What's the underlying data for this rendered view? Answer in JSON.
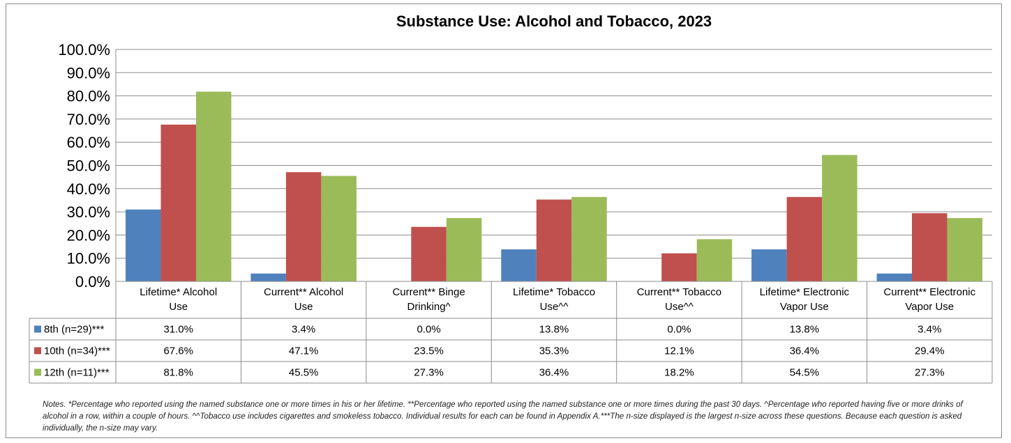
{
  "chart_data": {
    "type": "bar",
    "title": "Substance Use: Alcohol and Tobacco, 2023",
    "categories": [
      [
        "Lifetime* Alcohol",
        "Use"
      ],
      [
        "Current** Alcohol",
        "Use"
      ],
      [
        "Current** Binge",
        "Drinking^"
      ],
      [
        "Lifetime* Tobacco",
        "Use^^"
      ],
      [
        "Current** Tobacco",
        "Use^^"
      ],
      [
        "Lifetime* Electronic",
        "Vapor Use"
      ],
      [
        "Current** Electronic",
        "Vapor Use"
      ]
    ],
    "yticks": [
      "0.0%",
      "10.0%",
      "20.0%",
      "30.0%",
      "40.0%",
      "50.0%",
      "60.0%",
      "70.0%",
      "80.0%",
      "90.0%",
      "100.0%"
    ],
    "ylim": [
      0,
      100
    ],
    "grid": true,
    "legend": "data-table",
    "series": [
      {
        "name": "8th (n=29)***",
        "color": "#4f81bd",
        "values": [
          31.0,
          3.4,
          0.0,
          13.8,
          0.0,
          13.8,
          3.4
        ],
        "labels": [
          "31.0%",
          "3.4%",
          "0.0%",
          "13.8%",
          "0.0%",
          "13.8%",
          "3.4%"
        ]
      },
      {
        "name": "10th (n=34)***",
        "color": "#c0504d",
        "values": [
          67.6,
          47.1,
          23.5,
          35.3,
          12.1,
          36.4,
          29.4
        ],
        "labels": [
          "67.6%",
          "47.1%",
          "23.5%",
          "35.3%",
          "12.1%",
          "36.4%",
          "29.4%"
        ]
      },
      {
        "name": "12th (n=11)***",
        "color": "#9bbb59",
        "values": [
          81.8,
          45.5,
          27.3,
          36.4,
          18.2,
          54.5,
          27.3
        ],
        "labels": [
          "81.8%",
          "45.5%",
          "27.3%",
          "36.4%",
          "18.2%",
          "54.5%",
          "27.3%"
        ]
      }
    ]
  },
  "notes": "Notes. *Percentage who reported using the named substance one or more times in his or her lifetime. **Percentage who reported using the named substance one or more times during the past 30 days. ^Percentage who reported having five or more drinks of alcohol in a row, within a couple of hours. ^^Tobacco use includes cigarettes and smokeless tobacco. Individual results for each can be found in Appendix A.***The n-size displayed is the largest n-size across these questions. Because each question is asked individually, the n-size may vary."
}
